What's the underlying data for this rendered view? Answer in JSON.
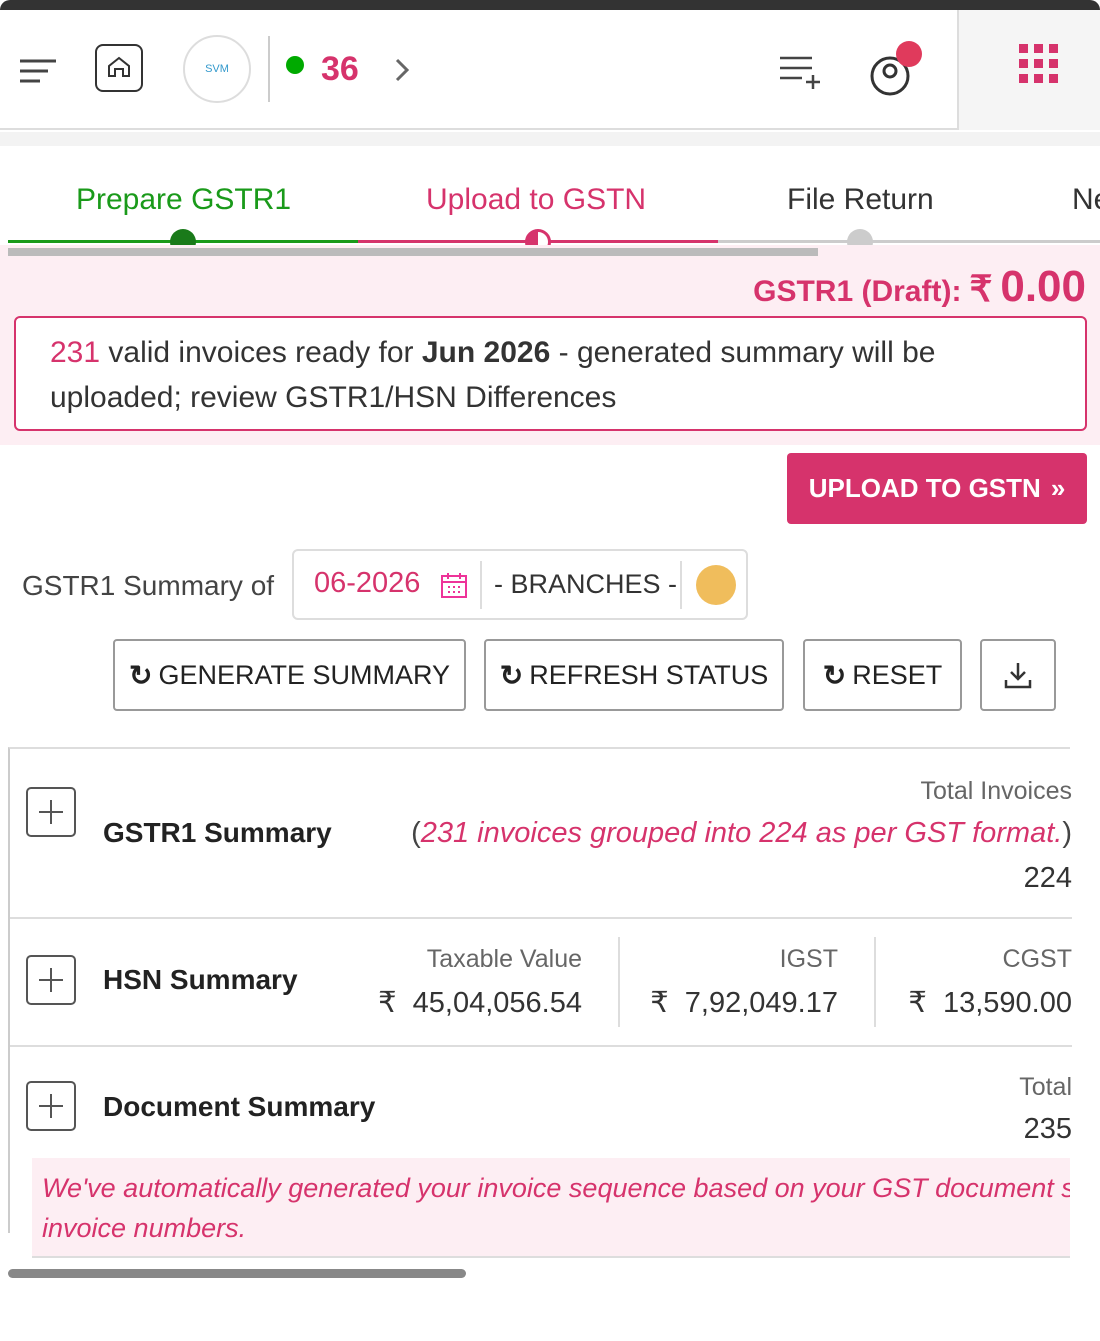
{
  "header": {
    "logo_text": "SVM",
    "badge_count": "36"
  },
  "steps": [
    {
      "label": "Prepare GSTR1"
    },
    {
      "label": "Upload to GSTN"
    },
    {
      "label": "File Return"
    },
    {
      "label": "Ne"
    }
  ],
  "draft": {
    "label": "GSTR1 (Draft):",
    "currency": "₹",
    "amount": "0.00"
  },
  "notice": {
    "count": "231",
    "text_before": " valid invoices ready for ",
    "period": "Jun 2026",
    "text_after": " - generated summary will be uploaded; review GSTR1/HSN Differences"
  },
  "upload_button": {
    "label": "UPLOAD TO GSTN",
    "icon": "»"
  },
  "filter": {
    "label": "GSTR1 Summary of",
    "period": "06-2026",
    "branches": "- BRANCHES -"
  },
  "actions": [
    "GENERATE SUMMARY",
    "REFRESH STATUS",
    "RESET"
  ],
  "gstr1_summary": {
    "title": "GSTR1 Summary",
    "metric_label": "Total Invoices",
    "note_open": "(",
    "note": "231 invoices grouped into 224 as per GST format.",
    "note_close": ")",
    "value": "224"
  },
  "hsn_summary": {
    "title": "HSN Summary",
    "currency": "₹",
    "columns": [
      {
        "label": "Taxable Value",
        "value": "45,04,056.54"
      },
      {
        "label": "IGST",
        "value": "7,92,049.17"
      },
      {
        "label": "CGST",
        "value": "13,590.00"
      }
    ]
  },
  "document_summary": {
    "title": "Document Summary",
    "metric_label": "Total",
    "value": "235",
    "message_line1": "We've automatically generated your invoice sequence based on your GST document s",
    "message_line2": "invoice numbers."
  }
}
